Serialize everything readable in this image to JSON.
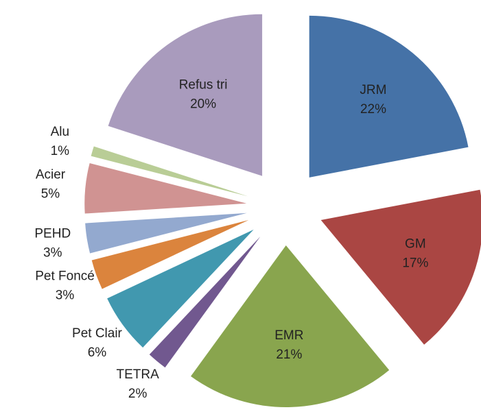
{
  "chart_data": {
    "type": "pie",
    "categories": [
      "JRM",
      "GM",
      "EMR",
      "TETRA",
      "Pet Clair",
      "Pet Foncé",
      "PEHD",
      "Acier",
      "Alu",
      "Refus tri"
    ],
    "values": [
      22,
      17,
      21,
      2,
      6,
      3,
      3,
      5,
      1,
      20
    ],
    "value_labels": [
      "22%",
      "17%",
      "21%",
      "2%",
      "6%",
      "3%",
      "3%",
      "5%",
      "1%",
      "20%"
    ],
    "colors": [
      "#4572a7",
      "#aa4643",
      "#89a54e",
      "#71588f",
      "#4198af",
      "#db843d",
      "#93a9cf",
      "#d09392",
      "#b9cd96",
      "#a99bbd"
    ],
    "exploded": true
  }
}
